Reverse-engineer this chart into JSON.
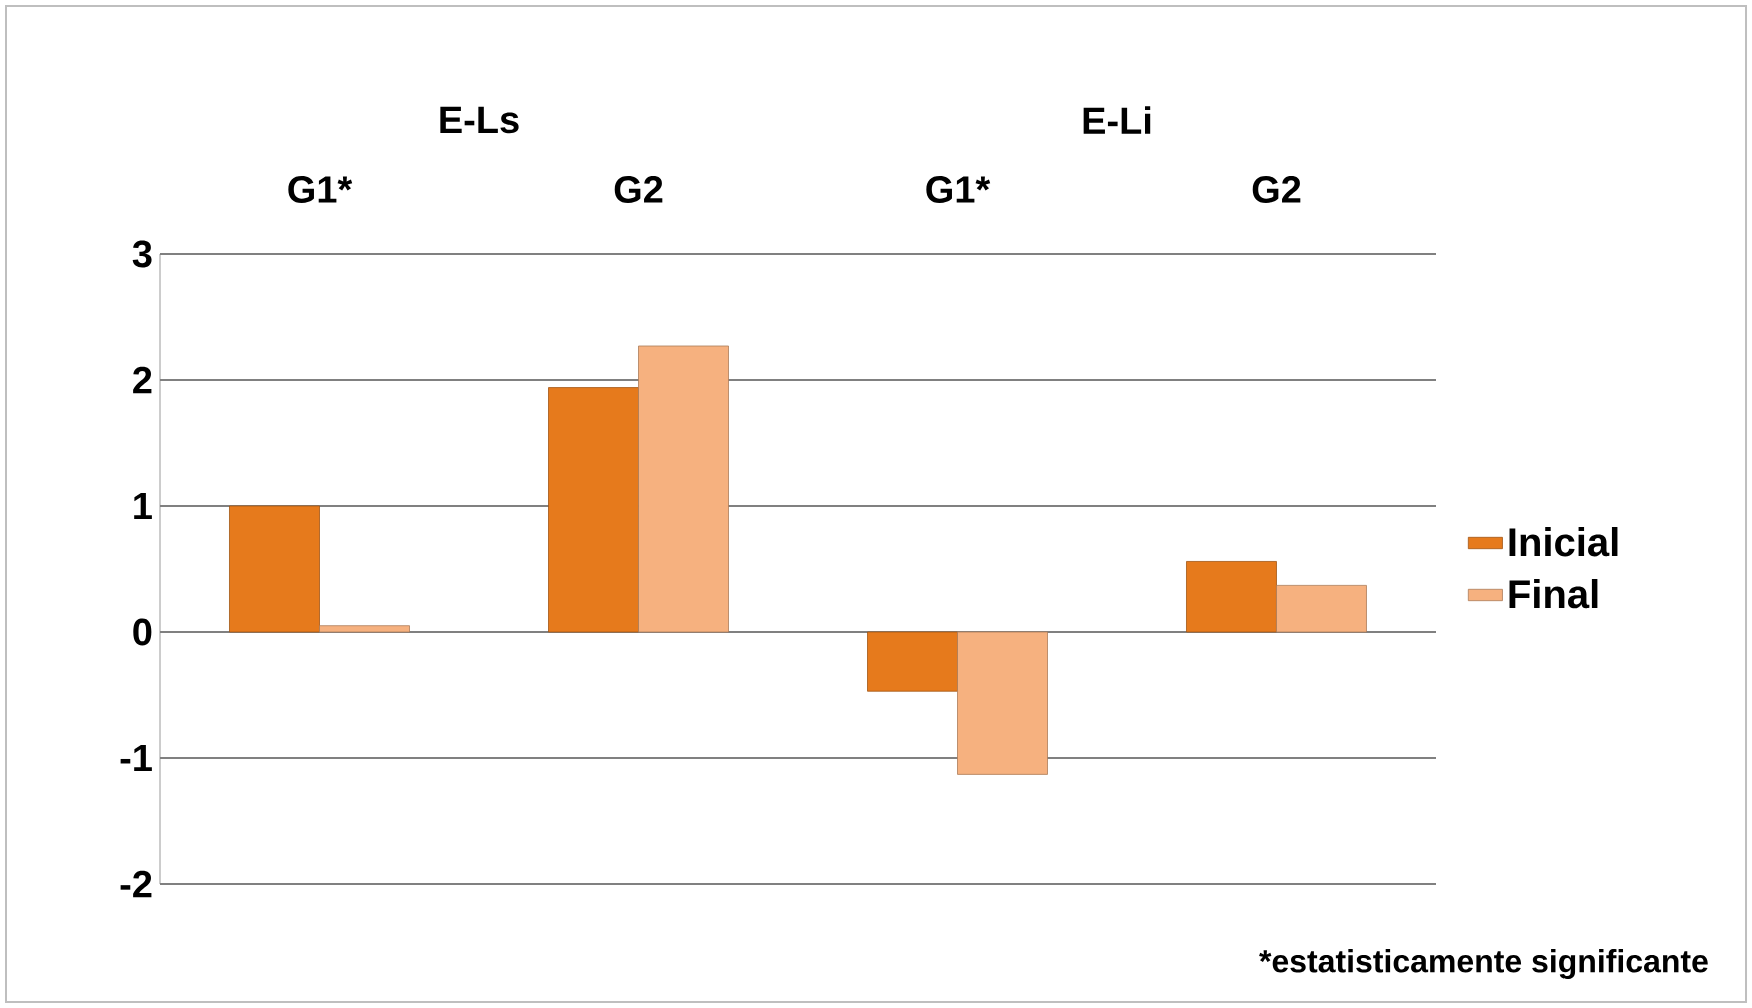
{
  "chart_data": {
    "type": "bar",
    "categories": [
      "G1*",
      "G2",
      "G1*",
      "G2"
    ],
    "series": [
      {
        "name": "Inicial",
        "color": "#e67a1c",
        "values": [
          1.0,
          1.94,
          -0.47,
          0.56
        ]
      },
      {
        "name": "Final",
        "color": "#f6b17f",
        "values": [
          0.05,
          2.27,
          -1.13,
          0.37
        ]
      }
    ],
    "ylim": [
      -2,
      3
    ],
    "yticks": [
      -2,
      -1,
      0,
      1,
      2,
      3
    ],
    "grid": "y",
    "legend": "right",
    "annotations": [
      "E-Ls",
      "E-Li",
      "*estatisticamente significante"
    ]
  }
}
